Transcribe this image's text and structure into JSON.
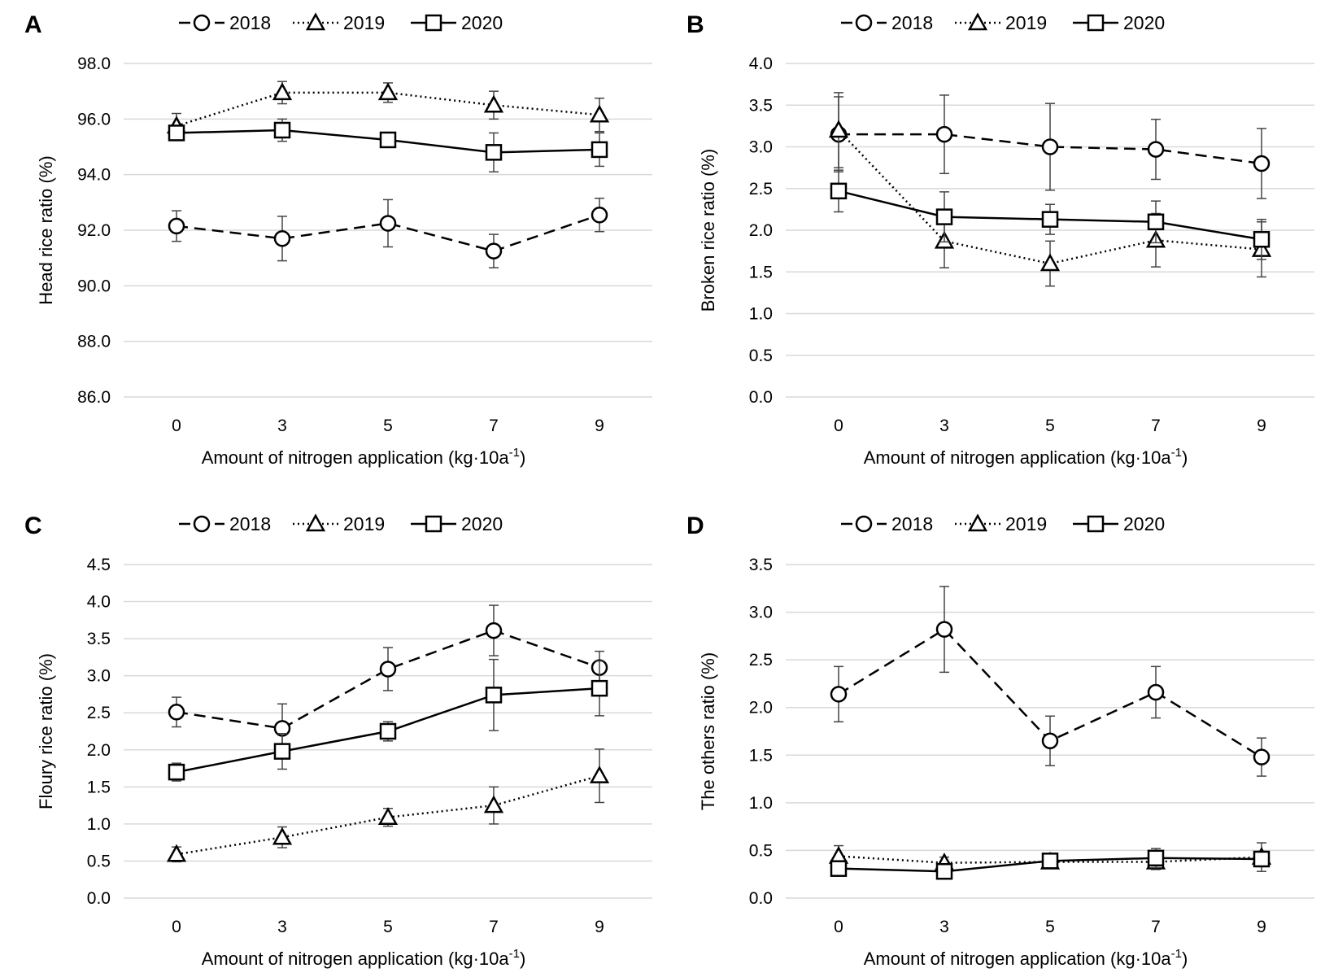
{
  "figure": {
    "legend": [
      {
        "name": "2018",
        "marker": "circle",
        "dash": "dashed"
      },
      {
        "name": "2019",
        "marker": "triangle",
        "dash": "dotted"
      },
      {
        "name": "2020",
        "marker": "square",
        "dash": "solid"
      }
    ]
  },
  "chart_data": [
    {
      "panel": "A",
      "type": "line",
      "xlabel": "Amount of nitrogen application (kg·10a",
      "xlabel_sup": "-1",
      "xlabel_end": ")",
      "ylabel": "Head rice ratio (%)",
      "categories": [
        "0",
        "3",
        "5",
        "7",
        "9"
      ],
      "ylim": [
        86.0,
        98.0
      ],
      "yticks": [
        "86.0",
        "88.0",
        "90.0",
        "92.0",
        "94.0",
        "96.0",
        "98.0"
      ],
      "grid": true,
      "legend_position": "top",
      "series": [
        {
          "name": "2018",
          "values": [
            92.15,
            91.7,
            92.25,
            91.25,
            92.55
          ],
          "errors": [
            0.55,
            0.8,
            0.85,
            0.6,
            0.6
          ]
        },
        {
          "name": "2019",
          "values": [
            95.75,
            96.95,
            96.95,
            96.5,
            96.15
          ],
          "errors": [
            0.45,
            0.4,
            0.35,
            0.5,
            0.6
          ]
        },
        {
          "name": "2020",
          "values": [
            95.5,
            95.6,
            95.25,
            94.8,
            94.9
          ],
          "errors": [
            0.25,
            0.4,
            0.2,
            0.7,
            0.6
          ]
        }
      ]
    },
    {
      "panel": "B",
      "type": "line",
      "xlabel": "Amount of nitrogen application (kg·10a",
      "xlabel_sup": "-1",
      "xlabel_end": ")",
      "ylabel": "Broken rice ratio (%)",
      "categories": [
        "0",
        "3",
        "5",
        "7",
        "9"
      ],
      "ylim": [
        0.0,
        4.0
      ],
      "yticks": [
        "0.0",
        "0.5",
        "1.0",
        "1.5",
        "2.0",
        "2.5",
        "3.0",
        "3.5",
        "4.0"
      ],
      "grid": true,
      "legend_position": "top",
      "series": [
        {
          "name": "2018",
          "values": [
            3.15,
            3.15,
            3.0,
            2.97,
            2.8
          ],
          "errors": [
            0.45,
            0.47,
            0.52,
            0.36,
            0.42
          ]
        },
        {
          "name": "2019",
          "values": [
            3.2,
            1.87,
            1.6,
            1.88,
            1.77
          ],
          "errors": [
            0.45,
            0.32,
            0.27,
            0.32,
            0.33
          ]
        },
        {
          "name": "2020",
          "values": [
            2.47,
            2.16,
            2.13,
            2.1,
            1.89
          ],
          "errors": [
            0.25,
            0.3,
            0.18,
            0.25,
            0.24
          ]
        }
      ]
    },
    {
      "panel": "C",
      "type": "line",
      "xlabel": "Amount of nitrogen application (kg·10a",
      "xlabel_sup": "-1",
      "xlabel_end": ")",
      "ylabel": "Floury rice ratio (%)",
      "categories": [
        "0",
        "3",
        "5",
        "7",
        "9"
      ],
      "ylim": [
        0.0,
        4.5
      ],
      "yticks": [
        "0.0",
        "0.5",
        "1.0",
        "1.5",
        "2.0",
        "2.5",
        "3.0",
        "3.5",
        "4.0",
        "4.5"
      ],
      "grid": true,
      "legend_position": "top",
      "series": [
        {
          "name": "2018",
          "values": [
            2.51,
            2.29,
            3.09,
            3.61,
            3.11
          ],
          "errors": [
            0.2,
            0.33,
            0.29,
            0.34,
            0.22
          ]
        },
        {
          "name": "2019",
          "values": [
            0.59,
            0.82,
            1.09,
            1.25,
            1.65
          ],
          "errors": [
            0.1,
            0.14,
            0.12,
            0.25,
            0.36
          ]
        },
        {
          "name": "2020",
          "values": [
            1.7,
            1.98,
            2.25,
            2.74,
            2.83
          ],
          "errors": [
            0.12,
            0.24,
            0.13,
            0.48,
            0.37
          ]
        }
      ]
    },
    {
      "panel": "D",
      "type": "line",
      "xlabel": "Amount of nitrogen application (kg·10a",
      "xlabel_sup": "-1",
      "xlabel_end": ")",
      "ylabel": "The others ratio (%)",
      "categories": [
        "0",
        "3",
        "5",
        "7",
        "9"
      ],
      "ylim": [
        0.0,
        3.5
      ],
      "yticks": [
        "0.0",
        "0.5",
        "1.0",
        "1.5",
        "2.0",
        "2.5",
        "3.0",
        "3.5"
      ],
      "grid": true,
      "legend_position": "top",
      "series": [
        {
          "name": "2018",
          "values": [
            2.14,
            2.82,
            1.65,
            2.16,
            1.48
          ],
          "errors": [
            0.29,
            0.45,
            0.26,
            0.27,
            0.2
          ]
        },
        {
          "name": "2019",
          "values": [
            0.44,
            0.37,
            0.38,
            0.38,
            0.43
          ],
          "errors": [
            0.11,
            0.06,
            0.05,
            0.08,
            0.15
          ]
        },
        {
          "name": "2020",
          "values": [
            0.31,
            0.28,
            0.39,
            0.42,
            0.41
          ],
          "errors": [
            0.05,
            0.05,
            0.05,
            0.1,
            0.08
          ]
        }
      ]
    }
  ]
}
